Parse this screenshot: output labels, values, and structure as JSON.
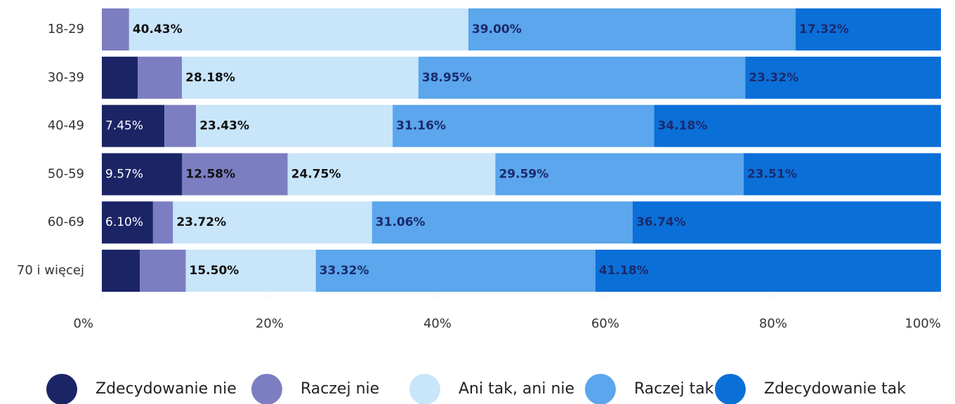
{
  "chart_data": {
    "type": "stacked-bar-horizontal",
    "categories": [
      "18-29",
      "30-39",
      "40-49",
      "50-59",
      "60-69",
      "70 i więcej"
    ],
    "xlim": [
      0,
      100
    ],
    "xticks": [
      {
        "value": 0,
        "label": "0%"
      },
      {
        "value": 20,
        "label": "20%"
      },
      {
        "value": 40,
        "label": "40%"
      },
      {
        "value": 60,
        "label": "60%"
      },
      {
        "value": 80,
        "label": "80%"
      },
      {
        "value": 100,
        "label": "100%"
      }
    ],
    "series": [
      {
        "name": "Zdecydowanie nie",
        "color": "#1b2566",
        "values": [
          0,
          4.27,
          7.45,
          9.57,
          6.1,
          4.52
        ],
        "value_labels": [
          null,
          null,
          "7.45%",
          "9.57%",
          "6.10%",
          null
        ]
      },
      {
        "name": "Raczej nie",
        "color": "#7c7ec2",
        "values": [
          3.25,
          5.28,
          3.78,
          12.58,
          2.38,
          5.48
        ],
        "value_labels": [
          null,
          null,
          null,
          "12.58%",
          null,
          null
        ]
      },
      {
        "name": "Ani tak, ani nie",
        "color": "#c8e5fa",
        "values": [
          40.43,
          28.18,
          23.43,
          24.75,
          23.72,
          15.5
        ],
        "value_labels": [
          "40.43%",
          "28.18%",
          "23.43%",
          "24.75%",
          "23.72%",
          "15.50%"
        ]
      },
      {
        "name": "Raczej tak",
        "color": "#5ba6ec",
        "values": [
          39.0,
          38.95,
          31.16,
          29.59,
          31.06,
          33.32
        ],
        "value_labels": [
          "39.00%",
          "38.95%",
          "31.16%",
          "29.59%",
          "31.06%",
          "33.32%"
        ]
      },
      {
        "name": "Zdecydowanie tak",
        "color": "#0b6fd8",
        "values": [
          17.32,
          23.32,
          34.18,
          23.51,
          36.74,
          41.18
        ],
        "value_labels": [
          "17.32%",
          "23.32%",
          "34.18%",
          "23.51%",
          "36.74%",
          "41.18%"
        ]
      }
    ]
  }
}
